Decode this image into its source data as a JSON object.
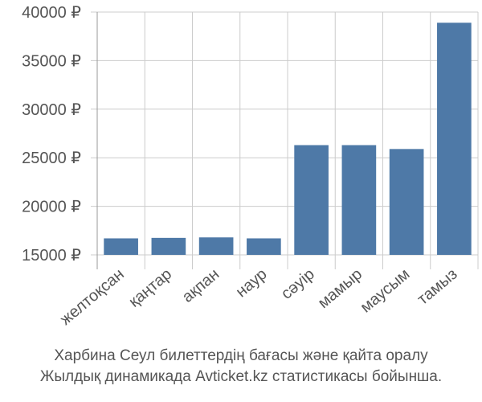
{
  "chart_data": {
    "type": "bar",
    "categories": [
      "желтоқсан",
      "қаңтар",
      "ақпан",
      "наур",
      "сәуір",
      "мамыр",
      "маусым",
      "тамыз"
    ],
    "values": [
      16700,
      16750,
      16800,
      16700,
      26300,
      26300,
      25900,
      38900
    ],
    "y_ticks": [
      "15000 ₽",
      "20000 ₽",
      "25000 ₽",
      "30000 ₽",
      "35000 ₽",
      "40000 ₽"
    ],
    "ylim": [
      15000,
      40000
    ],
    "grid": true,
    "legend": "none",
    "bar_color": "#4e79a7",
    "grid_color": "#cccccc",
    "axis_color": "#999999"
  },
  "caption": {
    "line1": "Харбина Сеул билеттердің бағасы және қайта оралу",
    "line2": "Жылдық динамикада Avticket.kz статистикасы бойынша."
  }
}
